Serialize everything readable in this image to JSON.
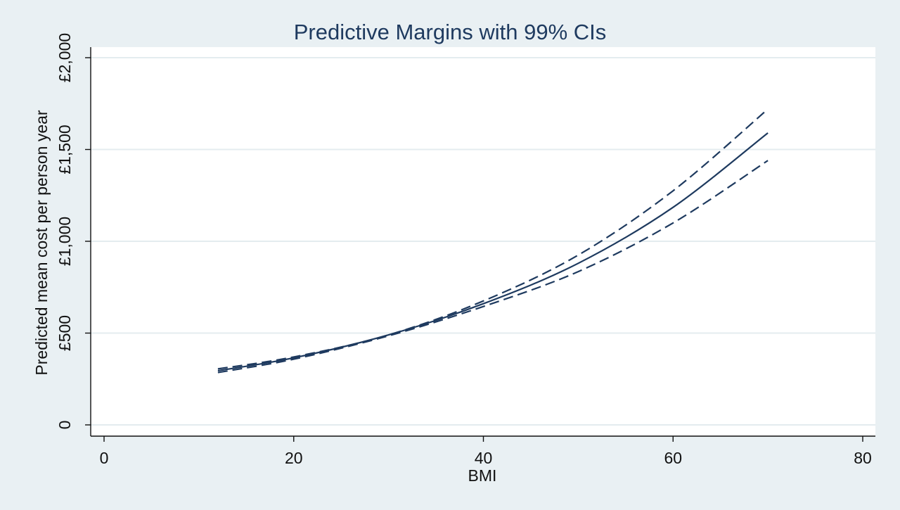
{
  "chart_data": {
    "type": "line",
    "title": "Predictive Margins with 99% CIs",
    "xlabel": "BMI",
    "ylabel": "Predicted mean cost per person year",
    "xlim": [
      0,
      80
    ],
    "ylim": [
      0,
      2000
    ],
    "x_ticks": [
      0,
      20,
      40,
      60,
      80
    ],
    "x_tick_labels": [
      "0",
      "20",
      "40",
      "60",
      "80"
    ],
    "y_ticks": [
      0,
      500,
      1000,
      1500,
      2000
    ],
    "y_tick_labels": [
      "0",
      "£500",
      "£1,000",
      "£1,500",
      "£2,000"
    ],
    "grid": "horizontal",
    "legend": "none",
    "colors": {
      "line": "#1e3a5f",
      "background": "#e9f0f3",
      "plot_area": "#ffffff",
      "grid": "#e4ecef"
    },
    "x": [
      12,
      20,
      30,
      40,
      50,
      60,
      70
    ],
    "series": [
      {
        "style": "dashed",
        "values": [
          305,
          370,
          490,
          675,
          925,
          1275,
          1720
        ]
      },
      {
        "style": "solid",
        "values": [
          295,
          365,
          490,
          660,
          880,
          1185,
          1590
        ]
      },
      {
        "style": "dashed",
        "values": [
          285,
          358,
          485,
          645,
          835,
          1100,
          1440
        ]
      }
    ]
  }
}
